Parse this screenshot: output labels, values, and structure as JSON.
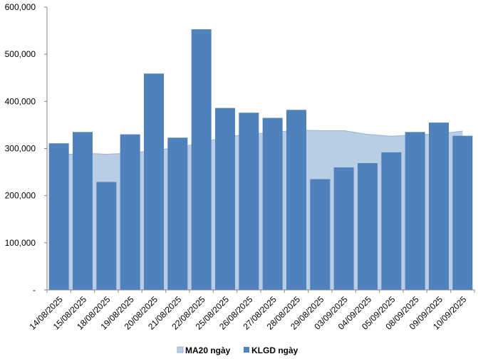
{
  "chart_data": {
    "type": "bar",
    "categories": [
      "14/08/2025",
      "15/08/2025",
      "18/08/2025",
      "19/08/2025",
      "20/08/2025",
      "21/08/2025",
      "22/08/2025",
      "25/08/2025",
      "26/08/2025",
      "27/08/2025",
      "28/08/2025",
      "29/08/2025",
      "03/09/2025",
      "04/09/2025",
      "05/09/2025",
      "08/09/2025",
      "09/09/2025",
      "10/09/2025"
    ],
    "series": [
      {
        "name": "KLGD ngày",
        "type": "bar",
        "color": "#4F81BD",
        "values": [
          311000,
          335000,
          229000,
          330000,
          459000,
          323000,
          553000,
          386000,
          376000,
          365000,
          382000,
          235000,
          260000,
          269000,
          292000,
          335000,
          355000,
          327000
        ]
      },
      {
        "name": "MA20 ngày",
        "type": "area",
        "color": "#B9CDE5",
        "stroke": "#95B3D7",
        "values": [
          286000,
          290000,
          288000,
          290000,
          296000,
          302000,
          312000,
          325000,
          330000,
          334000,
          339000,
          338000,
          338000,
          330000,
          326000,
          329000,
          331000,
          337000
        ]
      }
    ],
    "ylim": [
      0,
      600000
    ],
    "yticks": [
      0,
      100000,
      200000,
      300000,
      400000,
      500000,
      600000
    ],
    "ytick_labels": [
      "-",
      "100,000",
      "200,000",
      "300,000",
      "400,000",
      "500,000",
      "600,000"
    ],
    "grid": false,
    "legend_position": "bottom",
    "title": "",
    "xlabel": "",
    "ylabel": ""
  },
  "legend": [
    {
      "label": "MA20 ngày",
      "color": "#B9CDE5"
    },
    {
      "label": "KLGD ngày",
      "color": "#4F81BD"
    }
  ]
}
